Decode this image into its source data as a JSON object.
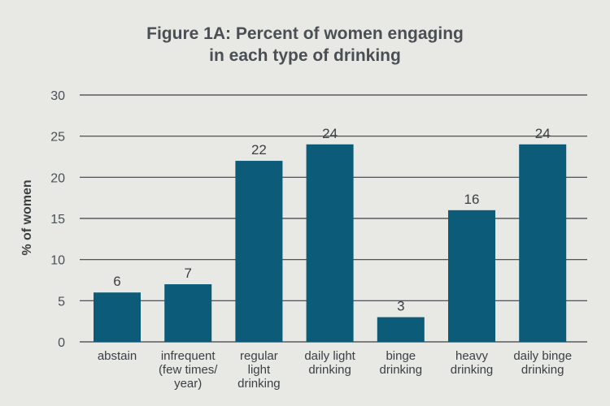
{
  "colors": {
    "bar": "#0c5b78",
    "grid": "#3b3f44",
    "background": "#e8e9e4"
  },
  "chart_data": {
    "type": "bar",
    "title": "Figure 1A: Percent of women engaging in each type of drinking",
    "title_lines": [
      "Figure 1A: Percent of women engaging",
      "in each type of drinking"
    ],
    "xlabel": "",
    "ylabel": "% of women",
    "ylim": [
      0,
      30
    ],
    "yticks": [
      0,
      5,
      10,
      15,
      20,
      25,
      30
    ],
    "grid": true,
    "categories": [
      "abstain",
      "infrequent (few times/ year)",
      "regular light drinking",
      "daily light drinking",
      "binge drinking",
      "heavy drinking",
      "daily binge drinking"
    ],
    "category_lines": [
      [
        "abstain"
      ],
      [
        "infrequent",
        "(few times/",
        "year)"
      ],
      [
        "regular",
        "light",
        "drinking"
      ],
      [
        "daily light",
        "drinking"
      ],
      [
        "binge",
        "drinking"
      ],
      [
        "heavy",
        "drinking"
      ],
      [
        "daily binge",
        "drinking"
      ]
    ],
    "values": [
      6,
      7,
      22,
      24,
      3,
      16,
      24
    ],
    "data_labels": [
      "6",
      "7",
      "22",
      "24",
      "3",
      "16",
      "24"
    ]
  }
}
